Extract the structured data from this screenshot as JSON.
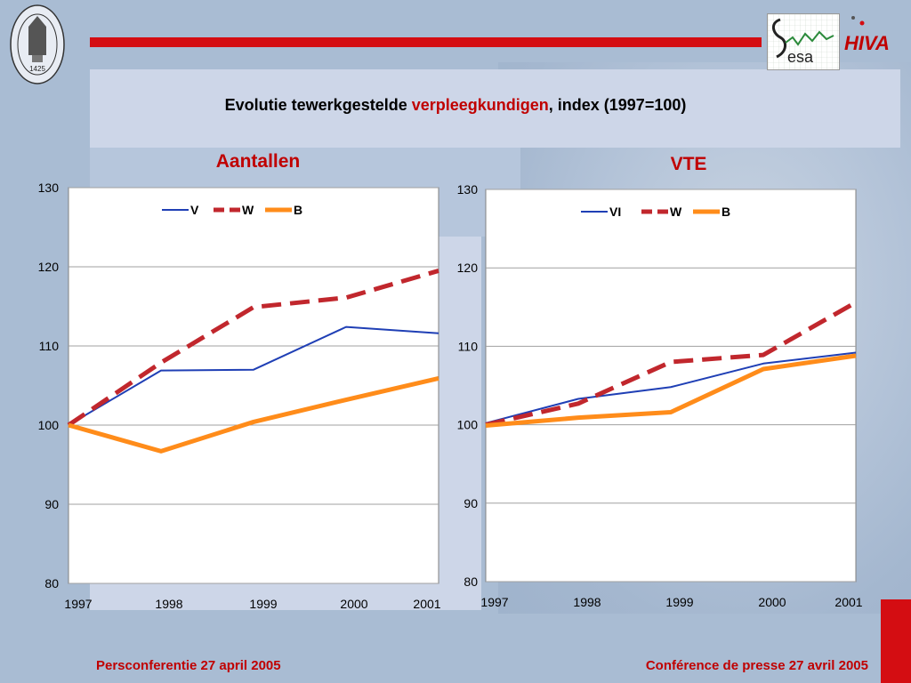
{
  "slide": {
    "title_before": "Evolutie tewerkgestelde ",
    "title_highlight": "verpleegkundigen",
    "title_after": ", index (1997=100)",
    "seal_year": "1425",
    "footer_left": "Persconferentie 27 april 2005",
    "footer_right": "Conférence de presse 27 avril 2005",
    "logo_sesa_text": "esa",
    "logo_hiva_text": "HIVA",
    "colors": {
      "accent_red": "#d40d12",
      "title_red": "#c00000"
    }
  },
  "chart_data": [
    {
      "type": "line",
      "title": "Aantallen",
      "categories": [
        "1997",
        "1998",
        "1999",
        "2000",
        "2001"
      ],
      "ylim": [
        80,
        130
      ],
      "yticks": [
        80,
        90,
        100,
        110,
        120,
        130
      ],
      "grid": true,
      "legend_position": "top",
      "series": [
        {
          "name": "V",
          "values": [
            100,
            106.9,
            107.0,
            112.4,
            111.6
          ],
          "color": "#1f3fb5",
          "style": "solid",
          "width": "thin"
        },
        {
          "name": "W",
          "values": [
            100,
            107.9,
            114.9,
            116.1,
            119.5
          ],
          "color": "#c1272d",
          "style": "dashed",
          "width": "thick"
        },
        {
          "name": "B",
          "values": [
            100,
            96.7,
            100.4,
            103.2,
            105.9
          ],
          "color": "#ff8c1a",
          "style": "solid",
          "width": "thick"
        }
      ]
    },
    {
      "type": "line",
      "title": "VTE",
      "categories": [
        "1997",
        "1998",
        "1999",
        "2000",
        "2001"
      ],
      "ylim": [
        80,
        130
      ],
      "yticks": [
        80,
        90,
        100,
        110,
        120,
        130
      ],
      "grid": true,
      "legend_position": "top",
      "series": [
        {
          "name": "VI",
          "values": [
            100.2,
            103.3,
            104.8,
            107.8,
            109.2
          ],
          "color": "#1f3fb5",
          "style": "solid",
          "width": "thin"
        },
        {
          "name": "W",
          "values": [
            100.0,
            102.7,
            108.0,
            108.9,
            115.6
          ],
          "color": "#c1272d",
          "style": "dashed",
          "width": "thick"
        },
        {
          "name": "B",
          "values": [
            99.9,
            100.9,
            101.6,
            107.1,
            108.8
          ],
          "color": "#ff8c1a",
          "style": "solid",
          "width": "thick"
        }
      ]
    }
  ]
}
